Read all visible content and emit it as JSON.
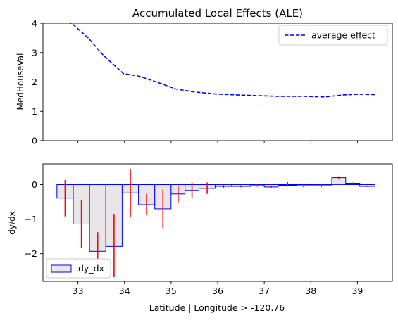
{
  "chart_data": [
    {
      "type": "line",
      "title": "Accumulated Local Effects (ALE)",
      "ylabel": "MedHouseVal",
      "xlabel": "",
      "xlim": [
        32.25,
        39.75
      ],
      "ylim": [
        0,
        4
      ],
      "yticks": [
        0,
        1,
        2,
        3,
        4
      ],
      "legend_position": "top-right",
      "grid": false,
      "series": [
        {
          "name": "average effect",
          "color": "#0000ff",
          "style": "dashed",
          "x": [
            32.55,
            32.88,
            33.22,
            33.55,
            33.98,
            34.3,
            34.65,
            35.1,
            35.5,
            35.95,
            36.4,
            36.9,
            37.35,
            37.85,
            38.3,
            38.7,
            39.05,
            39.38
          ],
          "y": [
            4.15,
            3.98,
            3.5,
            2.9,
            2.28,
            2.2,
            2.02,
            1.76,
            1.66,
            1.59,
            1.56,
            1.53,
            1.51,
            1.51,
            1.49,
            1.56,
            1.58,
            1.57
          ]
        }
      ]
    },
    {
      "type": "bar",
      "title": "",
      "xlabel": "Latitude | Longitude > -120.76",
      "ylabel": "dy/dx",
      "xlim": [
        32.25,
        39.75
      ],
      "ylim": [
        -2.8,
        0.6
      ],
      "yticks": [
        -2,
        -1,
        0
      ],
      "xticks": [
        33,
        34,
        35,
        36,
        37,
        38,
        39
      ],
      "legend_position": "bottom-left",
      "grid": false,
      "bar_fill": "#e8e6e8",
      "bar_edge": "#0000ff",
      "errorbar_color": "#ff0000",
      "series": [
        {
          "name": "dy_dx",
          "bins": [
            {
              "x0": 32.55,
              "x1": 32.9,
              "value": -0.39,
              "err_low": -0.92,
              "err_high": 0.13
            },
            {
              "x0": 32.9,
              "x1": 33.25,
              "value": -1.14,
              "err_low": -1.84,
              "err_high": -0.45
            },
            {
              "x0": 33.25,
              "x1": 33.6,
              "value": -1.93,
              "err_low": -2.22,
              "err_high": -1.38
            },
            {
              "x0": 33.6,
              "x1": 33.95,
              "value": -1.79,
              "err_low": -2.68,
              "err_high": -0.85
            },
            {
              "x0": 33.95,
              "x1": 34.3,
              "value": -0.24,
              "err_low": -0.93,
              "err_high": 0.44
            },
            {
              "x0": 34.3,
              "x1": 34.65,
              "value": -0.58,
              "err_low": -0.87,
              "err_high": -0.27
            },
            {
              "x0": 34.65,
              "x1": 35.0,
              "value": -0.7,
              "err_low": -1.26,
              "err_high": -0.14
            },
            {
              "x0": 35.0,
              "x1": 35.3,
              "value": -0.27,
              "err_low": -0.52,
              "err_high": -0.02
            },
            {
              "x0": 35.3,
              "x1": 35.6,
              "value": -0.17,
              "err_low": -0.4,
              "err_high": 0.06
            },
            {
              "x0": 35.6,
              "x1": 35.95,
              "value": -0.11,
              "err_low": -0.27,
              "err_high": 0.06
            },
            {
              "x0": 35.95,
              "x1": 36.3,
              "value": -0.05,
              "err_low": -0.1,
              "err_high": 0.0
            },
            {
              "x0": 36.3,
              "x1": 36.7,
              "value": -0.05,
              "err_low": -0.08,
              "err_high": -0.02
            },
            {
              "x0": 36.7,
              "x1": 37.0,
              "value": -0.03,
              "err_low": -0.06,
              "err_high": 0.0
            },
            {
              "x0": 37.0,
              "x1": 37.3,
              "value": -0.07,
              "err_low": -0.1,
              "err_high": -0.04
            },
            {
              "x0": 37.3,
              "x1": 37.7,
              "value": -0.02,
              "err_low": -0.06,
              "err_high": 0.07
            },
            {
              "x0": 37.7,
              "x1": 38.0,
              "value": -0.03,
              "err_low": -0.09,
              "err_high": 0.03
            },
            {
              "x0": 38.0,
              "x1": 38.45,
              "value": -0.03,
              "err_low": -0.08,
              "err_high": 0.02
            },
            {
              "x0": 38.45,
              "x1": 38.75,
              "value": 0.2,
              "err_low": 0.16,
              "err_high": 0.24
            },
            {
              "x0": 38.75,
              "x1": 39.05,
              "value": 0.04,
              "err_low": 0.02,
              "err_high": 0.06
            },
            {
              "x0": 39.05,
              "x1": 39.38,
              "value": -0.05,
              "err_low": -0.07,
              "err_high": -0.03
            }
          ]
        }
      ]
    }
  ]
}
